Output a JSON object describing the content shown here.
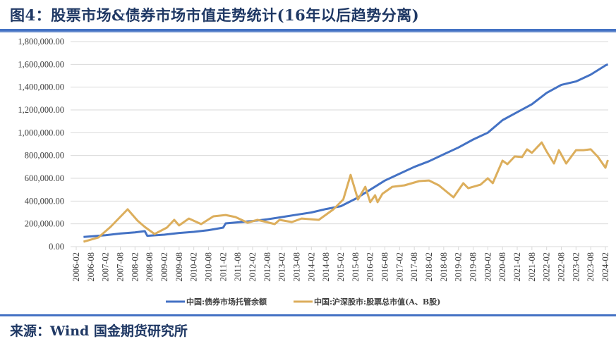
{
  "title": "图4：股票市场&债券市场市值走势统计(16年以后趋势分离)",
  "footer": "来源：Wind  国金期货研究所",
  "chart_data": {
    "type": "line",
    "title": "图4：股票市场&债券市场市值走势统计(16年以后趋势分离)",
    "xlabel": "",
    "ylabel": "",
    "ylim": [
      0,
      1800000
    ],
    "y_ticks": [
      "0.00",
      "200,000.00",
      "400,000.00",
      "600,000.00",
      "800,000.00",
      "1,000,000.00",
      "1,200,000.00",
      "1,400,000.00",
      "1,600,000.00",
      "1,800,000.00"
    ],
    "x_ticks": [
      "2006-02",
      "2006-08",
      "2007-02",
      "2007-08",
      "2008-02",
      "2008-08",
      "2009-02",
      "2009-08",
      "2010-02",
      "2010-08",
      "2011-02",
      "2011-08",
      "2012-02",
      "2012-08",
      "2013-02",
      "2013-08",
      "2014-02",
      "2014-08",
      "2015-02",
      "2015-08",
      "2016-02",
      "2016-08",
      "2017-02",
      "2017-08",
      "2018-02",
      "2018-08",
      "2019-02",
      "2019-08",
      "2020-02",
      "2020-08",
      "2021-02",
      "2021-08",
      "2022-02",
      "2022-08",
      "2023-02",
      "2023-08",
      "2024-02"
    ],
    "grid": true,
    "legend_position": "bottom",
    "series": [
      {
        "name": "中国:债券市场托管余额",
        "color": "#4472c4",
        "x": [
          "2006-05",
          "2007-02",
          "2007-08",
          "2008-02",
          "2008-06",
          "2008-07",
          "2009-02",
          "2009-08",
          "2010-02",
          "2010-08",
          "2011-02",
          "2011-03",
          "2012-02",
          "2012-08",
          "2013-02",
          "2013-08",
          "2014-02",
          "2014-08",
          "2015-02",
          "2015-08",
          "2016-02",
          "2016-08",
          "2017-02",
          "2017-08",
          "2018-02",
          "2018-08",
          "2019-02",
          "2019-08",
          "2020-02",
          "2020-08",
          "2021-02",
          "2021-08",
          "2022-02",
          "2022-08",
          "2023-02",
          "2023-08",
          "2024-02",
          "2024-03"
        ],
        "values": [
          85000,
          100000,
          115000,
          125000,
          136000,
          95000,
          105000,
          120000,
          130000,
          145000,
          167000,
          204000,
          225000,
          240000,
          260000,
          280000,
          300000,
          330000,
          355000,
          420000,
          500000,
          580000,
          640000,
          700000,
          750000,
          810000,
          870000,
          940000,
          1000000,
          1110000,
          1180000,
          1250000,
          1350000,
          1420000,
          1450000,
          1510000,
          1590000,
          1600000
        ]
      },
      {
        "name": "中国:沪深股市:股票总市值(A、B股)",
        "color": "#dcae5c",
        "x": [
          "2006-05",
          "2006-11",
          "2007-04",
          "2007-11",
          "2008-03",
          "2008-06",
          "2008-10",
          "2009-03",
          "2009-06",
          "2009-08",
          "2009-12",
          "2010-05",
          "2010-10",
          "2011-03",
          "2011-07",
          "2011-12",
          "2012-04",
          "2012-11",
          "2013-01",
          "2013-06",
          "2013-10",
          "2014-05",
          "2014-11",
          "2015-03",
          "2015-06",
          "2015-09",
          "2015-12",
          "2016-02",
          "2016-04",
          "2016-05",
          "2016-07",
          "2016-11",
          "2017-04",
          "2017-10",
          "2018-02",
          "2018-06",
          "2018-12",
          "2019-04",
          "2019-06",
          "2019-11",
          "2020-02",
          "2020-04",
          "2020-08",
          "2020-10",
          "2021-01",
          "2021-04",
          "2021-06",
          "2021-08",
          "2021-12",
          "2022-02",
          "2022-05",
          "2022-07",
          "2022-10",
          "2023-02",
          "2023-05",
          "2023-08",
          "2023-11",
          "2024-02",
          "2024-03"
        ],
        "values": [
          43000,
          80000,
          173000,
          328000,
          229000,
          173000,
          111000,
          167000,
          235000,
          186000,
          247000,
          198000,
          266000,
          278000,
          260000,
          210000,
          235000,
          198000,
          235000,
          216000,
          247000,
          235000,
          328000,
          414000,
          630000,
          414000,
          525000,
          390000,
          451000,
          390000,
          464000,
          525000,
          538000,
          575000,
          581000,
          538000,
          433000,
          557000,
          513000,
          544000,
          600000,
          557000,
          755000,
          724000,
          792000,
          786000,
          854000,
          823000,
          915000,
          835000,
          730000,
          847000,
          730000,
          847000,
          847000,
          854000,
          786000,
          693000,
          760000
        ]
      }
    ]
  }
}
